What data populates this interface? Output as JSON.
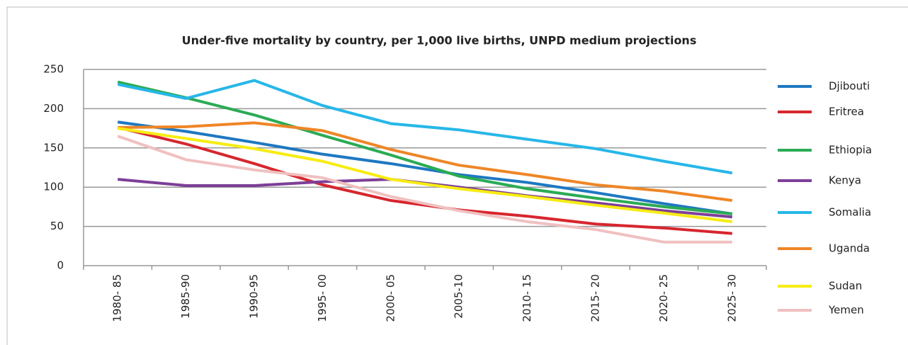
{
  "chart_data": {
    "type": "line",
    "title": "Under-five mortality by country, per 1,000 live births, UNPD medium projections",
    "categories": [
      "1980- 85",
      "1985-90",
      "1990-95",
      "1995- 00",
      "2000- 05",
      "2005-10",
      "2010- 15",
      "2015- 20",
      "2020- 25",
      "2025- 30"
    ],
    "series": [
      {
        "name": "Djibouti",
        "color": "#1f78c1",
        "values": [
          183,
          171,
          157,
          142,
          130,
          116,
          106,
          93,
          79,
          66
        ]
      },
      {
        "name": "Eritrea",
        "color": "#d7262e",
        "values": [
          176,
          155,
          130,
          103,
          83,
          71,
          63,
          53,
          48,
          41
        ]
      },
      {
        "name": "Ethiopia",
        "color": "#2bab54",
        "values": [
          234,
          214,
          192,
          166,
          141,
          114,
          98,
          86,
          75,
          66
        ]
      },
      {
        "name": "Kenya",
        "color": "#7d3f98",
        "values": [
          110,
          102,
          102,
          107,
          110,
          100,
          89,
          80,
          70,
          62
        ]
      },
      {
        "name": "Somalia",
        "color": "#27b7e8",
        "values": [
          231,
          213,
          236,
          204,
          181,
          173,
          161,
          149,
          133,
          118
        ]
      },
      {
        "name": "Uganda",
        "color": "#ee8627",
        "values": [
          176,
          177,
          182,
          172,
          148,
          128,
          116,
          103,
          95,
          83
        ]
      },
      {
        "name": "Sudan",
        "color": "#f7ec13",
        "values": [
          175,
          162,
          149,
          133,
          110,
          98,
          88,
          77,
          67,
          56
        ]
      },
      {
        "name": "Yemen",
        "color": "#f0c0c0",
        "values": [
          165,
          135,
          122,
          112,
          88,
          70,
          56,
          46,
          30,
          30
        ]
      }
    ],
    "ylim": [
      0,
      250
    ],
    "yticks": [
      0,
      50,
      100,
      150,
      200,
      250
    ],
    "grid": true,
    "legend": "right"
  }
}
